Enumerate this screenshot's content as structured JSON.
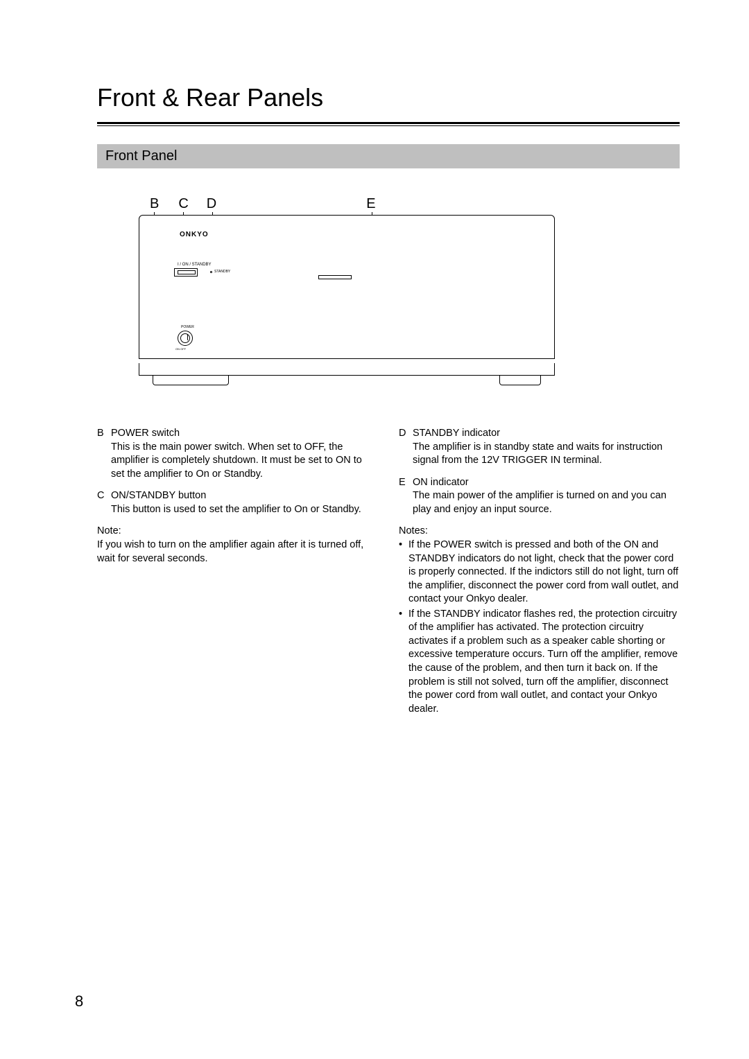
{
  "title": "Front & Rear Panels",
  "section_header": "Front Panel",
  "callouts": {
    "b": "B",
    "c": "C",
    "d": "D",
    "e": "E"
  },
  "diagram": {
    "logo": "ONKYO",
    "onstandby_label": "I / ON / STANDBY",
    "standby_text": "STANDBY",
    "power_label": "POWER",
    "power_onoff": "ON   OFF"
  },
  "left_items": [
    {
      "letter": "B",
      "title": "POWER switch",
      "body": "This is the main power switch. When set to OFF, the amplifier is completely shutdown. It must be set to ON to set the amplifier to On or Standby."
    },
    {
      "letter": "C",
      "title": "ON/STANDBY button",
      "body": "This button is used to set the amplifier to On or Standby."
    }
  ],
  "left_note": {
    "label": "Note:",
    "body": "If you wish to turn on the amplifier again after it is turned off, wait for several seconds."
  },
  "right_items": [
    {
      "letter": "D",
      "title": "STANDBY indicator",
      "body": "The amplifier is in standby state and waits for instruction signal from the 12V TRIGGER IN terminal."
    },
    {
      "letter": "E",
      "title": "ON indicator",
      "body": "The main power of the amplifier is turned on and you can play and enjoy an input source."
    }
  ],
  "right_notes": {
    "label": "Notes:",
    "bullets": [
      "If the POWER switch is pressed and both of the ON and STANDBY indicators do not light, check that the power cord is properly connected. If the indictors still do not light, turn off the amplifier, disconnect the power cord from wall outlet, and contact your Onkyo dealer.",
      "If the STANDBY indicator flashes red, the protection circuitry of the amplifier has activated. The protection circuitry activates if a problem such as a speaker cable shorting or excessive temperature occurs. Turn off the amplifier, remove the cause of the problem, and then turn it back on. If the problem is still not solved, turn off the amplifier, disconnect the power cord from wall outlet, and contact your Onkyo dealer."
    ]
  },
  "page_number": "8"
}
